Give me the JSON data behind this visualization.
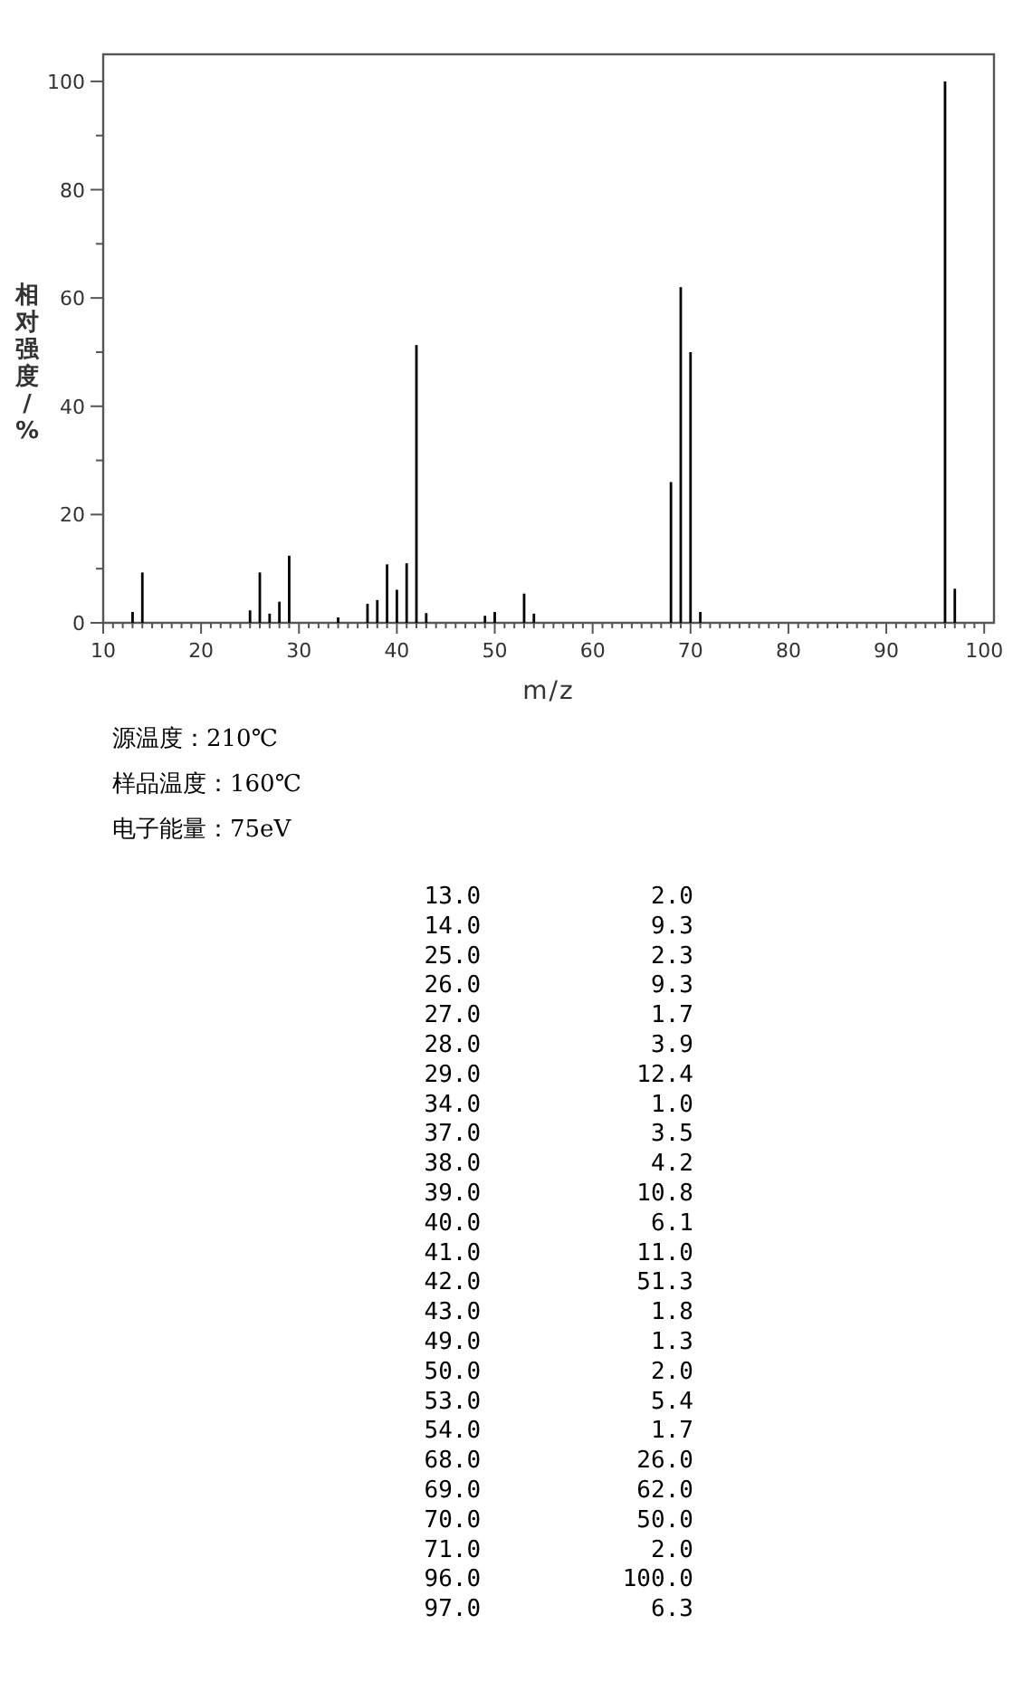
{
  "chart_data": {
    "type": "bar",
    "xlabel": "m/z",
    "ylabel": "相对强度/%",
    "x": [
      13,
      14,
      25,
      26,
      27,
      28,
      29,
      34,
      37,
      38,
      39,
      40,
      41,
      42,
      43,
      49,
      50,
      53,
      54,
      68,
      69,
      70,
      71,
      96,
      97
    ],
    "values": [
      2.0,
      9.3,
      2.3,
      9.3,
      1.7,
      3.9,
      12.4,
      1.0,
      3.5,
      4.2,
      10.8,
      6.1,
      11.0,
      51.3,
      1.8,
      1.3,
      2.0,
      5.4,
      1.7,
      26.0,
      62.0,
      50.0,
      2.0,
      100.0,
      6.3
    ],
    "color": "#000000",
    "xlim": [
      10,
      101
    ],
    "ylim": [
      0,
      105
    ],
    "xticks": [
      10,
      {
        "value": 11,
        "label": null
      },
      {
        "value": 12,
        "label": null
      },
      {
        "value": 13,
        "label": null
      },
      {
        "value": 14,
        "label": null
      },
      {
        "value": 15,
        "label": null
      },
      {
        "value": 16,
        "label": null
      },
      {
        "value": 17,
        "label": null
      },
      {
        "value": 18,
        "label": null
      },
      {
        "value": 19,
        "label": null
      },
      20,
      {
        "value": 21,
        "label": null
      },
      {
        "value": 22,
        "label": null
      },
      {
        "value": 23,
        "label": null
      },
      {
        "value": 24,
        "label": null
      },
      {
        "value": 25,
        "label": null
      },
      {
        "value": 26,
        "label": null
      },
      {
        "value": 27,
        "label": null
      },
      {
        "value": 28,
        "label": null
      },
      {
        "value": 29,
        "label": null
      },
      30,
      {
        "value": 31,
        "label": null
      },
      {
        "value": 32,
        "label": null
      },
      {
        "value": 33,
        "label": null
      },
      {
        "value": 34,
        "label": null
      },
      {
        "value": 35,
        "label": null
      },
      {
        "value": 36,
        "label": null
      },
      {
        "value": 37,
        "label": null
      },
      {
        "value": 38,
        "label": null
      },
      {
        "value": 39,
        "label": null
      },
      40,
      {
        "value": 41,
        "label": null
      },
      {
        "value": 42,
        "label": null
      },
      {
        "value": 43,
        "label": null
      },
      {
        "value": 44,
        "label": null
      },
      {
        "value": 45,
        "label": null
      },
      {
        "value": 46,
        "label": null
      },
      {
        "value": 47,
        "label": null
      },
      {
        "value": 48,
        "label": null
      },
      {
        "value": 49,
        "label": null
      },
      50,
      {
        "value": 51,
        "label": null
      },
      {
        "value": 52,
        "label": null
      },
      {
        "value": 53,
        "label": null
      },
      {
        "value": 54,
        "label": null
      },
      {
        "value": 55,
        "label": null
      },
      {
        "value": 56,
        "label": null
      },
      {
        "value": 57,
        "label": null
      },
      {
        "value": 58,
        "label": null
      },
      {
        "value": 59,
        "label": null
      },
      60,
      {
        "value": 61,
        "label": null
      },
      {
        "value": 62,
        "label": null
      },
      {
        "value": 63,
        "label": null
      },
      {
        "value": 64,
        "label": null
      },
      {
        "value": 65,
        "label": null
      },
      {
        "value": 66,
        "label": null
      },
      {
        "value": 67,
        "label": null
      },
      {
        "value": 68,
        "label": null
      },
      {
        "value": 69,
        "label": null
      },
      70,
      {
        "value": 71,
        "label": null
      },
      {
        "value": 72,
        "label": null
      },
      {
        "value": 73,
        "label": null
      },
      {
        "value": 74,
        "label": null
      },
      {
        "value": 75,
        "label": null
      },
      {
        "value": 76,
        "label": null
      },
      {
        "value": 77,
        "label": null
      },
      {
        "value": 78,
        "label": null
      },
      {
        "value": 79,
        "label": null
      },
      80,
      {
        "value": 81,
        "label": null
      },
      {
        "value": 82,
        "label": null
      },
      {
        "value": 83,
        "label": null
      },
      {
        "value": 84,
        "label": null
      },
      {
        "value": 85,
        "label": null
      },
      {
        "value": 86,
        "label": null
      },
      {
        "value": 87,
        "label": null
      },
      {
        "value": 88,
        "label": null
      },
      {
        "value": 89,
        "label": null
      },
      90,
      {
        "value": 91,
        "label": null
      },
      {
        "value": 92,
        "label": null
      },
      {
        "value": 93,
        "label": null
      },
      {
        "value": 94,
        "label": null
      },
      {
        "value": 95,
        "label": null
      },
      {
        "value": 96,
        "label": null
      },
      {
        "value": 97,
        "label": null
      },
      {
        "value": 98,
        "label": null
      },
      {
        "value": 99,
        "label": null
      },
      100
    ],
    "yticks": [
      0,
      {
        "value": 10,
        "label": null
      },
      20,
      {
        "value": 30,
        "label": null
      },
      40,
      {
        "value": 50,
        "label": null
      },
      60,
      {
        "value": 70,
        "label": null
      },
      80,
      {
        "value": 90,
        "label": null
      },
      100
    ],
    "annotations": [
      "源温度：210℃",
      "样品温度：160℃",
      "电子能量：75eV",
      "13.0            2.0",
      "14.0            9.3",
      "25.0            2.3",
      "26.0            9.3",
      "27.0            1.7",
      "28.0            3.9",
      "29.0           12.4",
      "34.0            1.0",
      "37.0            3.5",
      "38.0            4.2",
      "39.0           10.8",
      "40.0            6.1",
      "41.0           11.0",
      "42.0           51.3",
      "43.0            1.8",
      "49.0            1.3",
      "50.0            2.0",
      "53.0            5.4",
      "54.0            1.7",
      "68.0           26.0",
      "69.0           62.0",
      "70.0           50.0",
      "71.0            2.0",
      "96.0          100.0",
      "97.0            6.3"
    ]
  }
}
